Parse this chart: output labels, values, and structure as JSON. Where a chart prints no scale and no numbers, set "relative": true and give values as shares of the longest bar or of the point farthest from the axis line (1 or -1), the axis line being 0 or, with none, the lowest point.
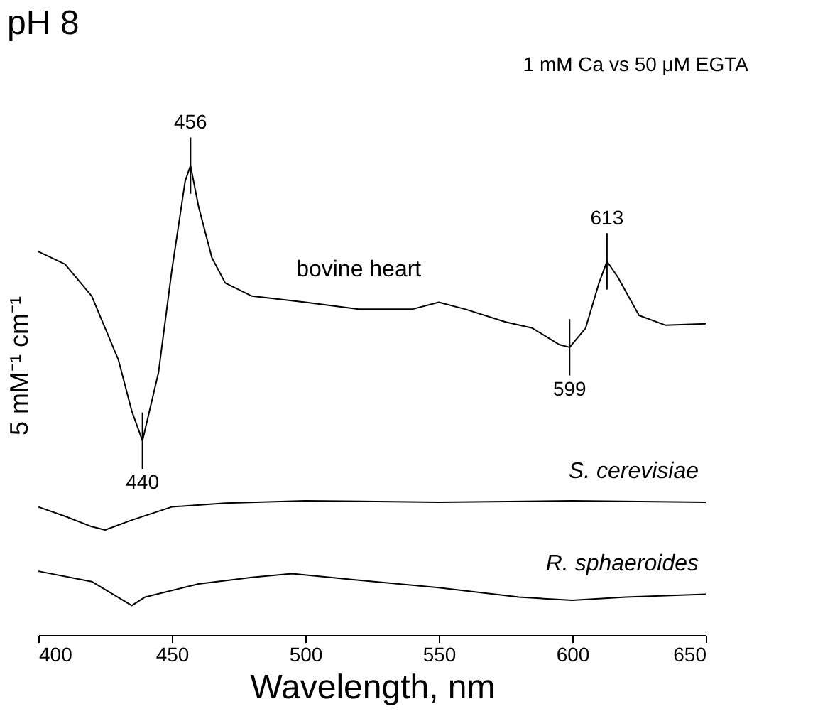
{
  "chart_data": {
    "type": "line",
    "title": "pH 8",
    "xlabel": "Wavelength, nm",
    "ylabel": "5 mM⁻¹ cm⁻¹",
    "relative": true,
    "xlim": [
      400,
      650
    ],
    "xticks": [
      400,
      450,
      500,
      550,
      600,
      650
    ],
    "grid": false,
    "marker": "none",
    "line_style": "solid",
    "series": [
      {
        "name": "bovine heart",
        "color": "#000000",
        "x": [
          400,
          410,
          420,
          430,
          435,
          439,
          445,
          450,
          455,
          457,
          460,
          465,
          470,
          480,
          500,
          520,
          540,
          550,
          560,
          575,
          585,
          595,
          599,
          605,
          610,
          613,
          617,
          625,
          635,
          650
        ],
        "values": [
          0.817,
          0.79,
          0.722,
          0.586,
          0.477,
          0.414,
          0.559,
          0.777,
          0.967,
          1.0,
          0.913,
          0.804,
          0.75,
          0.722,
          0.709,
          0.694,
          0.694,
          0.709,
          0.694,
          0.667,
          0.654,
          0.619,
          0.613,
          0.654,
          0.75,
          0.796,
          0.763,
          0.681,
          0.66,
          0.663
        ]
      },
      {
        "name": "S. cerevisiae",
        "color": "#000000",
        "x": [
          400,
          410,
          420,
          425,
          435,
          450,
          470,
          500,
          550,
          600,
          650
        ],
        "values": [
          0.273,
          0.253,
          0.231,
          0.224,
          0.245,
          0.273,
          0.281,
          0.286,
          0.283,
          0.286,
          0.283
        ]
      },
      {
        "name": "R. sphaeroides",
        "color": "#000000",
        "x": [
          400,
          420,
          435,
          440,
          460,
          480,
          495,
          520,
          550,
          580,
          600,
          620,
          650
        ],
        "values": [
          0.136,
          0.114,
          0.063,
          0.081,
          0.109,
          0.123,
          0.131,
          0.117,
          0.101,
          0.081,
          0.074,
          0.081,
          0.087
        ]
      }
    ],
    "annotations": [
      "1 mM Ca vs 50 μM EGTA",
      {
        "text": "440",
        "x": 439,
        "y": 0.414
      },
      {
        "text": "456",
        "x": 457,
        "y": 1.0
      },
      {
        "text": "599",
        "x": 599,
        "y": 0.613
      },
      {
        "text": "613",
        "x": 613,
        "y": 0.796
      }
    ]
  }
}
